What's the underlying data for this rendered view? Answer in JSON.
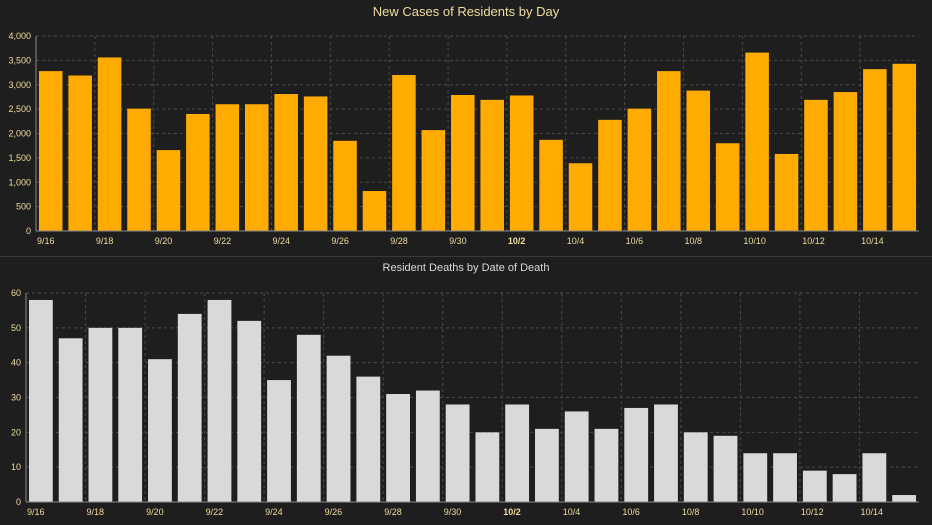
{
  "chart_data": [
    {
      "type": "bar",
      "title": "New Cases of Residents by Day",
      "categories": [
        "9/16",
        "9/17",
        "9/18",
        "9/19",
        "9/20",
        "9/21",
        "9/22",
        "9/23",
        "9/24",
        "9/25",
        "9/26",
        "9/27",
        "9/28",
        "9/29",
        "9/30",
        "10/1",
        "10/2",
        "10/3",
        "10/4",
        "10/5",
        "10/6",
        "10/7",
        "10/8",
        "10/9",
        "10/10",
        "10/11",
        "10/12",
        "10/13",
        "10/14",
        "10/15"
      ],
      "x_tick_labels": [
        "9/16",
        "9/18",
        "9/20",
        "9/22",
        "9/24",
        "9/26",
        "9/28",
        "9/30",
        "10/2",
        "10/4",
        "10/6",
        "10/8",
        "10/10",
        "10/12",
        "10/14"
      ],
      "values": [
        3280,
        3190,
        3560,
        2510,
        1660,
        2400,
        2600,
        2600,
        2810,
        2760,
        1850,
        820,
        3200,
        2070,
        2790,
        2690,
        2780,
        1870,
        1390,
        2280,
        2510,
        3280,
        2880,
        1800,
        3660,
        1580,
        2690,
        2850,
        3320,
        3430
      ],
      "ylim": [
        0,
        4000
      ],
      "y_ticks": [
        0,
        500,
        1000,
        1500,
        2000,
        2500,
        3000,
        3500,
        4000
      ],
      "y_tick_labels": [
        "0",
        "500",
        "1,000",
        "1,500",
        "2,000",
        "2,500",
        "3,000",
        "3,500",
        "4,000"
      ],
      "xlabel": "",
      "ylabel": "",
      "grid": true,
      "bar_color": "#ffab00",
      "title_color": "#f1dc9a",
      "tick_color": "#f1dc9a"
    },
    {
      "type": "bar",
      "title": "Resident Deaths by Date of Death",
      "categories": [
        "9/16",
        "9/17",
        "9/18",
        "9/19",
        "9/20",
        "9/21",
        "9/22",
        "9/23",
        "9/24",
        "9/25",
        "9/26",
        "9/27",
        "9/28",
        "9/29",
        "9/30",
        "10/1",
        "10/2",
        "10/3",
        "10/4",
        "10/5",
        "10/6",
        "10/7",
        "10/8",
        "10/9",
        "10/10",
        "10/11",
        "10/12",
        "10/13",
        "10/14",
        "10/15"
      ],
      "x_tick_labels": [
        "9/16",
        "9/18",
        "9/20",
        "9/22",
        "9/24",
        "9/26",
        "9/28",
        "9/30",
        "10/2",
        "10/4",
        "10/6",
        "10/8",
        "10/10",
        "10/12",
        "10/14"
      ],
      "values": [
        58,
        47,
        50,
        50,
        41,
        54,
        58,
        52,
        35,
        48,
        42,
        36,
        31,
        32,
        28,
        20,
        28,
        21,
        26,
        21,
        27,
        28,
        20,
        19,
        14,
        14,
        9,
        8,
        14,
        2
      ],
      "ylim": [
        0,
        60
      ],
      "y_ticks": [
        0,
        10,
        20,
        30,
        40,
        50,
        60
      ],
      "y_tick_labels": [
        "0",
        "10",
        "20",
        "30",
        "40",
        "50",
        "60"
      ],
      "xlabel": "",
      "ylabel": "",
      "grid": true,
      "bar_color": "#d9d9d9",
      "title_color": "#d9d9d9",
      "tick_color": "#f1dc9a"
    }
  ]
}
